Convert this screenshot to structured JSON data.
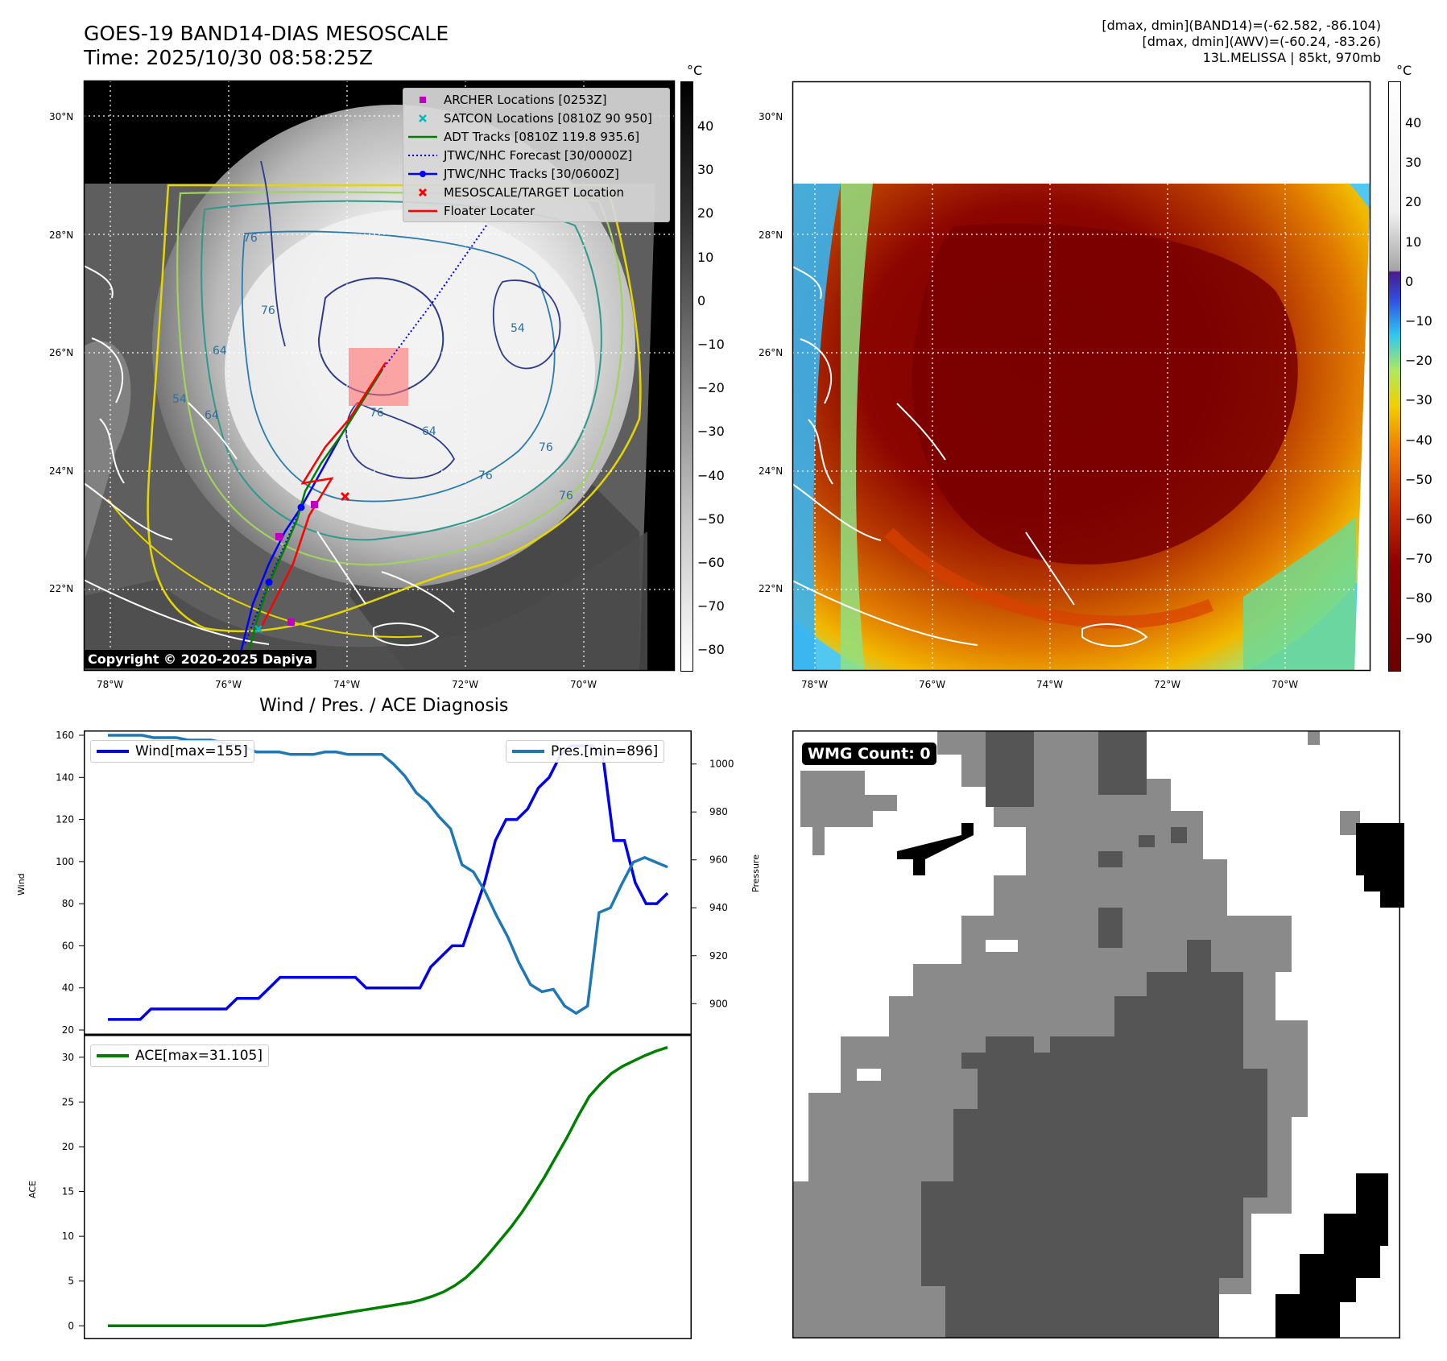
{
  "header": {
    "title_line1": "GOES-19 BAND14-DIAS MESOSCALE",
    "title_line2": "Time: 2025/10/30 08:58:25Z",
    "info_line1": "[dmax, dmin](BAND14)=(-62.582, -86.104)",
    "info_line2": "[dmax, dmin](AWV)=(-60.24, -83.26)",
    "info_line3": "13L.MELISSA | 85kt, 970mb"
  },
  "map_axes": {
    "lon_labels": [
      "78°W",
      "76°W",
      "74°W",
      "72°W",
      "70°W"
    ],
    "lat_labels": [
      "30°N",
      "28°N",
      "26°N",
      "24°N",
      "22°N"
    ]
  },
  "left_map": {
    "copyright": "Copyright © 2020-2025 Dapiya",
    "colorbar": {
      "unit": "°C",
      "ticks": [
        "40",
        "30",
        "20",
        "10",
        "0",
        "−10",
        "−20",
        "−30",
        "−40",
        "−50",
        "−60",
        "−70",
        "−80"
      ]
    },
    "contour_labels": [
      "76",
      "76",
      "64",
      "54",
      "76",
      "76",
      "76",
      "64",
      "64",
      "54",
      "76"
    ],
    "legend": [
      {
        "label": "ARCHER Locations [0253Z]",
        "color": "#c000c0",
        "symbol": "square"
      },
      {
        "label": "SATCON Locations [0810Z 90 950]",
        "color": "#00b8c0",
        "symbol": "x"
      },
      {
        "label": "ADT Tracks [0810Z 119.8 935.6]",
        "color": "#008000",
        "symbol": "line"
      },
      {
        "label": "JTWC/NHC Forecast [30/0000Z]",
        "color": "#0000ff",
        "symbol": "dotted"
      },
      {
        "label": "JTWC/NHC Tracks [30/0600Z]",
        "color": "#0000ff",
        "symbol": "line-dot"
      },
      {
        "label": "MESOSCALE/TARGET Location",
        "color": "#ff0000",
        "symbol": "x"
      },
      {
        "label": "Floater Locater",
        "color": "#ff0000",
        "symbol": "line"
      }
    ]
  },
  "right_map": {
    "colorbar": {
      "unit": "°C",
      "ticks": [
        "40",
        "30",
        "20",
        "10",
        "0",
        "−10",
        "−20",
        "−30",
        "−40",
        "−50",
        "−60",
        "−70",
        "−80",
        "−90"
      ]
    }
  },
  "chart_data": [
    {
      "type": "line",
      "title": "Wind / Pres. / ACE Diagnosis",
      "ylabel": "Wind",
      "y2label": "Pressure",
      "ylim": [
        20,
        160
      ],
      "y2lim": [
        889,
        1012
      ],
      "yticks": [
        20,
        40,
        60,
        80,
        100,
        120,
        140,
        160
      ],
      "y2ticks": [
        900,
        920,
        940,
        960,
        980,
        1000
      ],
      "series": [
        {
          "name": "Wind[max=155]",
          "axis": "left",
          "color": "#0000ee",
          "values": [
            25,
            25,
            25,
            25,
            30,
            30,
            30,
            30,
            30,
            30,
            30,
            30,
            35,
            35,
            35,
            40,
            45,
            45,
            45,
            45,
            45,
            45,
            45,
            45,
            40,
            40,
            40,
            40,
            40,
            40,
            50,
            55,
            60,
            60,
            75,
            90,
            110,
            120,
            120,
            125,
            135,
            140,
            150,
            155,
            155,
            155,
            150,
            110,
            110,
            90,
            80,
            80,
            85
          ]
        },
        {
          "name": "Pres.[min=896]",
          "axis": "right",
          "color": "#1f77b4",
          "values": [
            1012,
            1012,
            1012,
            1012,
            1011,
            1011,
            1011,
            1010,
            1010,
            1010,
            1009,
            1008,
            1007,
            1005,
            1005,
            1005,
            1004,
            1004,
            1004,
            1005,
            1005,
            1004,
            1004,
            1004,
            1004,
            1000,
            995,
            988,
            984,
            978,
            973,
            958,
            955,
            947,
            937,
            928,
            917,
            908,
            905,
            906,
            899,
            896,
            899,
            938,
            940,
            950,
            959,
            961,
            959,
            957
          ]
        }
      ]
    },
    {
      "type": "line",
      "title": "",
      "ylabel": "ACE",
      "ylim": [
        -1.5,
        32.5
      ],
      "yticks": [
        0,
        5,
        10,
        15,
        20,
        25,
        30
      ],
      "series": [
        {
          "name": "ACE[max=31.105]",
          "color": "#008000",
          "values": [
            0,
            0,
            0,
            0,
            0,
            0,
            0,
            0,
            0,
            0,
            0,
            0,
            0,
            0,
            0,
            0.2,
            0.4,
            0.6,
            0.8,
            1,
            1.2,
            1.4,
            1.6,
            1.8,
            2,
            2.2,
            2.4,
            2.6,
            2.9,
            3.3,
            3.8,
            4.5,
            5.4,
            6.6,
            8,
            9.5,
            11,
            12.7,
            14.6,
            16.6,
            18.8,
            21,
            23.4,
            25.6,
            27,
            28.2,
            29,
            29.6,
            30.2,
            30.7,
            31.1
          ]
        }
      ]
    }
  ],
  "wmg": {
    "label": "WMG Count: 0"
  }
}
